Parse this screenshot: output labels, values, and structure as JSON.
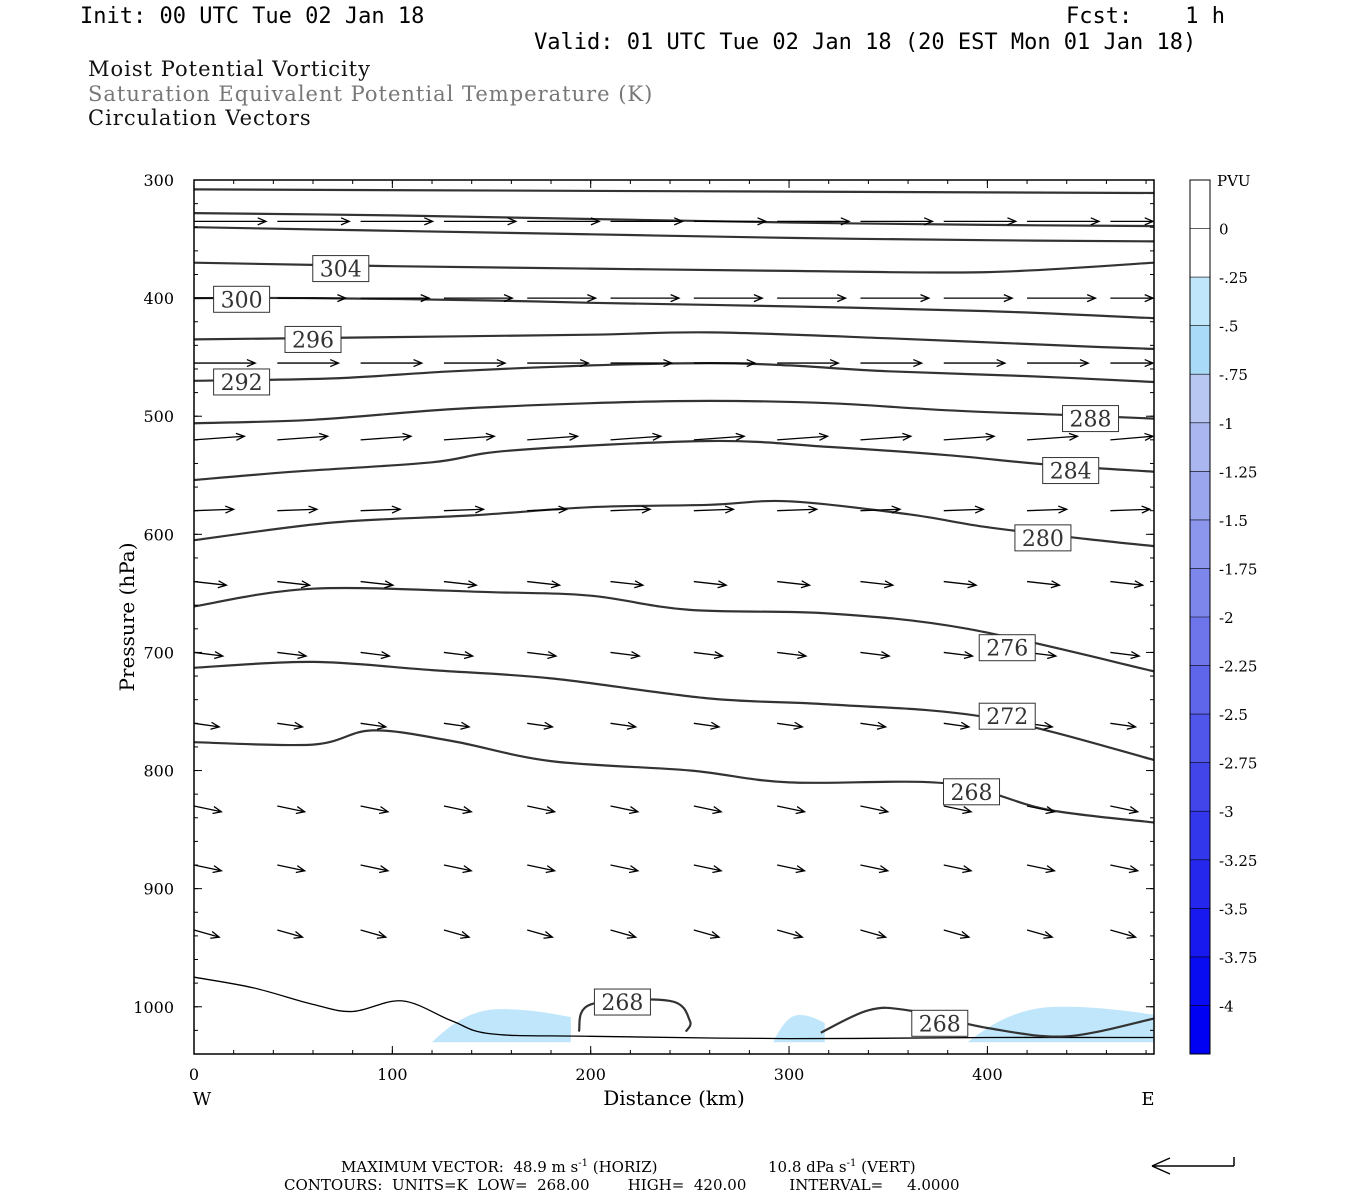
{
  "header": {
    "init": "Init: 00 UTC Tue 02 Jan 18",
    "fcst": "Fcst:    1 h",
    "valid": "Valid: 01 UTC Tue 02 Jan 18 (20 EST Mon 01 Jan 18)"
  },
  "fields": {
    "line1": "Moist Potential Vorticity",
    "line2": "Saturation Equivalent Potential Temperature (K)",
    "line3": "Circulation Vectors"
  },
  "footer": {
    "max_vector_prefix": "MAXIMUM VECTOR:  48.9 m s",
    "sup1": "-1",
    "horiz": " (HORIZ)",
    "vert_prefix": "10.8 dPa s",
    "sup2": "-1",
    "vert": " (VERT)",
    "contours": "CONTOURS:  UNITS=K  LOW=  268.00        HIGH=  420.00         INTERVAL=     4.0000"
  },
  "colors": {
    "contour": "#333333",
    "axis": "#000000",
    "pv_light": "#bfe6fb",
    "pv_mid": "#a6daf7"
  },
  "chart_data": {
    "type": "line",
    "xlabel": "Distance (km)",
    "ylabel": "Pressure (hPa)",
    "x_left_label": "W",
    "x_right_label": "E",
    "xlim": [
      0,
      484
    ],
    "ylim": [
      300,
      1040
    ],
    "y_reversed": true,
    "x_ticks": [
      0,
      100,
      200,
      300,
      400
    ],
    "y_ticks": [
      300,
      400,
      500,
      600,
      700,
      800,
      900,
      1000
    ],
    "contour_units": "K",
    "contour_low": 268.0,
    "contour_high": 420.0,
    "contour_interval": 4.0,
    "isentropes": [
      {
        "value": "",
        "points": [
          [
            0,
            308
          ],
          [
            484,
            311
          ]
        ]
      },
      {
        "value": "",
        "points": [
          [
            0,
            328
          ],
          [
            100,
            330
          ],
          [
            200,
            333
          ],
          [
            300,
            336
          ],
          [
            400,
            338
          ],
          [
            484,
            339
          ]
        ]
      },
      {
        "value": "",
        "points": [
          [
            0,
            340
          ],
          [
            100,
            343
          ],
          [
            200,
            346
          ],
          [
            300,
            349
          ],
          [
            400,
            351
          ],
          [
            484,
            352
          ]
        ]
      },
      {
        "value": "304",
        "points": [
          [
            0,
            370
          ],
          [
            100,
            373
          ],
          [
            200,
            375
          ],
          [
            300,
            377
          ],
          [
            400,
            378
          ],
          [
            484,
            370
          ]
        ],
        "label_at": [
          74,
          375
        ]
      },
      {
        "value": "300",
        "points": [
          [
            0,
            400
          ],
          [
            60,
            400
          ],
          [
            150,
            402
          ],
          [
            200,
            404
          ],
          [
            300,
            407
          ],
          [
            400,
            411
          ],
          [
            484,
            417
          ]
        ],
        "label_at": [
          24,
          401
        ]
      },
      {
        "value": "296",
        "points": [
          [
            0,
            435
          ],
          [
            100,
            433
          ],
          [
            200,
            431
          ],
          [
            260,
            429
          ],
          [
            350,
            434
          ],
          [
            450,
            441
          ],
          [
            484,
            443
          ]
        ],
        "label_at": [
          60,
          435
        ]
      },
      {
        "value": "292",
        "points": [
          [
            0,
            470
          ],
          [
            70,
            468
          ],
          [
            130,
            462
          ],
          [
            200,
            457
          ],
          [
            260,
            455
          ],
          [
            300,
            457
          ],
          [
            350,
            462
          ],
          [
            420,
            466
          ],
          [
            484,
            471
          ]
        ],
        "label_at": [
          24,
          471
        ]
      },
      {
        "value": "288",
        "points": [
          [
            0,
            506
          ],
          [
            60,
            503
          ],
          [
            130,
            494
          ],
          [
            200,
            489
          ],
          [
            260,
            487
          ],
          [
            320,
            489
          ],
          [
            380,
            495
          ],
          [
            440,
            499
          ],
          [
            484,
            502
          ]
        ],
        "label_at": [
          452,
          502
        ]
      },
      {
        "value": "284",
        "points": [
          [
            0,
            554
          ],
          [
            50,
            547
          ],
          [
            120,
            539
          ],
          [
            160,
            529
          ],
          [
            260,
            521
          ],
          [
            320,
            526
          ],
          [
            380,
            533
          ],
          [
            430,
            541
          ],
          [
            484,
            547
          ]
        ],
        "label_at": [
          442,
          546
        ]
      },
      {
        "value": "280",
        "points": [
          [
            0,
            605
          ],
          [
            70,
            590
          ],
          [
            140,
            584
          ],
          [
            200,
            577
          ],
          [
            260,
            575
          ],
          [
            300,
            572
          ],
          [
            360,
            583
          ],
          [
            400,
            594
          ],
          [
            450,
            604
          ],
          [
            484,
            610
          ]
        ],
        "label_at": [
          428,
          603
        ]
      },
      {
        "value": "276",
        "points": [
          [
            0,
            661
          ],
          [
            60,
            646
          ],
          [
            150,
            649
          ],
          [
            200,
            652
          ],
          [
            250,
            664
          ],
          [
            320,
            667
          ],
          [
            390,
            680
          ],
          [
            484,
            716
          ]
        ],
        "label_at": [
          410,
          696
        ]
      },
      {
        "value": "272",
        "points": [
          [
            0,
            713
          ],
          [
            60,
            708
          ],
          [
            120,
            715
          ],
          [
            180,
            722
          ],
          [
            260,
            739
          ],
          [
            320,
            744
          ],
          [
            400,
            755
          ],
          [
            484,
            791
          ]
        ],
        "label_at": [
          410,
          754
        ]
      },
      {
        "value": "268",
        "points": [
          [
            0,
            776
          ],
          [
            60,
            778
          ],
          [
            90,
            766
          ],
          [
            130,
            775
          ],
          [
            180,
            792
          ],
          [
            250,
            800
          ],
          [
            300,
            810
          ],
          [
            380,
            811
          ],
          [
            430,
            833
          ],
          [
            484,
            844
          ]
        ],
        "label_at": [
          392,
          818
        ]
      },
      {
        "value": "268",
        "points": [
          [
            194,
            1021
          ],
          [
            200,
            998
          ],
          [
            240,
            995
          ],
          [
            250,
            1012
          ],
          [
            248,
            1021
          ]
        ],
        "label_at": [
          216,
          996
        ]
      },
      {
        "value": "268",
        "points": [
          [
            316,
            1022
          ],
          [
            340,
            1003
          ],
          [
            360,
            1003
          ],
          [
            400,
            1018
          ],
          [
            440,
            1025
          ],
          [
            484,
            1010
          ]
        ],
        "label_at": [
          376,
          1014
        ]
      }
    ],
    "terrain": [
      [
        0,
        975
      ],
      [
        30,
        984
      ],
      [
        60,
        998
      ],
      [
        80,
        1004
      ],
      [
        105,
        995
      ],
      [
        130,
        1012
      ],
      [
        150,
        1023
      ],
      [
        200,
        1025
      ],
      [
        300,
        1027
      ],
      [
        400,
        1026
      ],
      [
        484,
        1026
      ]
    ],
    "pv_scale": {
      "label": "PVU",
      "ticks": [
        "0",
        "-.25",
        "-.5",
        "-.75",
        "-1",
        "-1.25",
        "-1.5",
        "-1.75",
        "-2",
        "-2.25",
        "-2.5",
        "-2.75",
        "-3",
        "-3.25",
        "-3.5",
        "-3.75",
        "-4"
      ],
      "colors": [
        "#ffffff",
        "#ffffff",
        "#bfe6fb",
        "#a9dbf8",
        "#b8c7f2",
        "#a9b6f0",
        "#9aa6ee",
        "#8c96ec",
        "#7d86eb",
        "#6e75ea",
        "#6066ea",
        "#5156ea",
        "#4246ea",
        "#3337eb",
        "#2528ec",
        "#1719ee",
        "#090bf0",
        "#0000f2"
      ]
    },
    "pv_areas": [
      {
        "x": [
          120,
          190
        ],
        "p_top": 1002,
        "level": "-.5"
      },
      {
        "x": [
          292,
          318
        ],
        "p_top": 1007,
        "level": "-.5"
      },
      {
        "x": [
          390,
          484
        ],
        "p_top": 1000,
        "level": "-.5"
      }
    ],
    "vectors": {
      "description": "circulation vectors (u, omega)",
      "max_horizontal": "48.9 m s-1",
      "max_vertical": "10.8 dPa s-1",
      "rows": [
        {
          "p": 335,
          "dx": 1.0,
          "dy": 0.0
        },
        {
          "p": 400,
          "dx": 0.95,
          "dy": 0.0
        },
        {
          "p": 455,
          "dx": 0.85,
          "dy": 0.0
        },
        {
          "p": 520,
          "dx": 0.7,
          "dy": -0.05
        },
        {
          "p": 580,
          "dx": 0.55,
          "dy": -0.02
        },
        {
          "p": 640,
          "dx": 0.45,
          "dy": 0.05
        },
        {
          "p": 700,
          "dx": 0.4,
          "dy": 0.05
        },
        {
          "p": 760,
          "dx": 0.35,
          "dy": 0.05
        },
        {
          "p": 830,
          "dx": 0.38,
          "dy": 0.08
        },
        {
          "p": 880,
          "dx": 0.38,
          "dy": 0.08
        },
        {
          "p": 935,
          "dx": 0.35,
          "dy": 0.1
        }
      ]
    }
  }
}
